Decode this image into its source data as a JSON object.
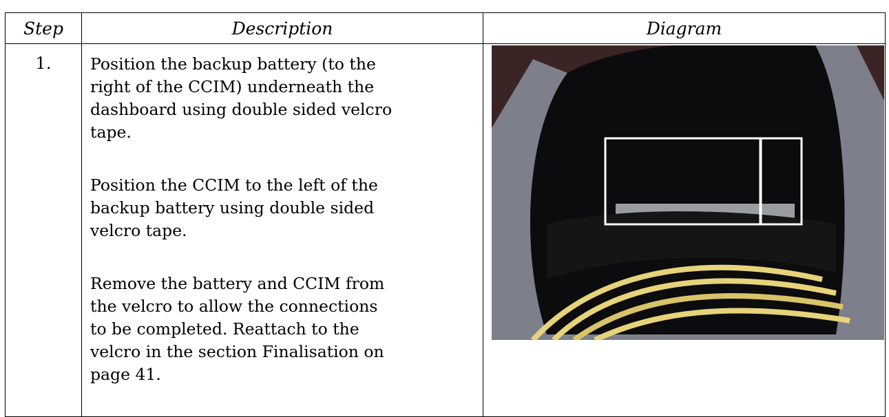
{
  "table": {
    "header": [
      "Step",
      "Description",
      "Diagram"
    ],
    "rows": [
      {
        "step": "1.",
        "paragraphs": [
          [
            "Position the backup battery (to the",
            "right of the CCIM) underneath the",
            "dashboard using double sided velcro",
            "tape."
          ],
          [
            "Position the CCIM to the left of the",
            "backup battery using double sided",
            "velcro tape."
          ],
          [
            "Remove the battery and CCIM from",
            "the velcro to allow the connections",
            "to be completed. Reattach to the",
            "velcro in the section Finalisation on",
            "page 41."
          ]
        ]
      }
    ]
  }
}
